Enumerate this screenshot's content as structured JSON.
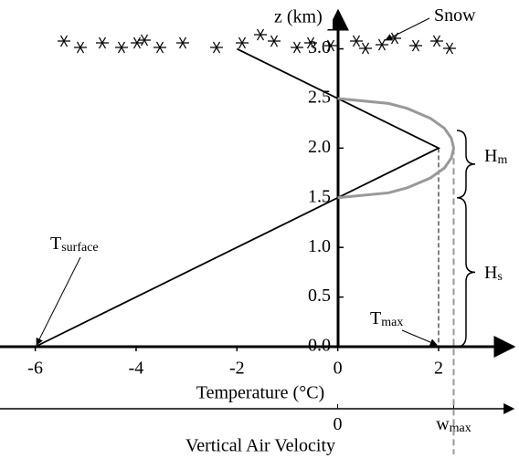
{
  "chart_data": {
    "type": "line",
    "ylabel": "z (km)",
    "xlabel": "Temperature (°C)",
    "x2label": "Vertical Air Velocity",
    "xlim": [
      -6.7,
      3.45
    ],
    "xticks": [
      -6,
      -4,
      -2,
      0,
      2
    ],
    "ylim": [
      0,
      3.4
    ],
    "yticks": [
      {
        "value": 0,
        "label": "0.0"
      },
      {
        "value": 0.5,
        "label": "0.5"
      },
      {
        "value": 1,
        "label": "1.0"
      },
      {
        "value": 1.5,
        "label": "1.5"
      },
      {
        "value": 2,
        "label": "2.0"
      },
      {
        "value": 2.5,
        "label": "2.5"
      },
      {
        "value": 3,
        "label": "3.0"
      }
    ],
    "x2lim": [
      -2.91,
      1.5
    ],
    "x2ticks": [
      {
        "value": 0,
        "label": "0"
      },
      {
        "value": 1,
        "label": "w"
      }
    ],
    "x2tick_sub": "max",
    "series": [
      {
        "color": "#000000",
        "axis": "x",
        "x": [
          -6,
          2,
          -2
        ],
        "values": [
          0,
          2,
          3
        ]
      },
      {
        "color": "#999999",
        "axis": "x2",
        "x": [
          0,
          0.44,
          0.6,
          0.8,
          0.92,
          0.98,
          1,
          0.98,
          0.92,
          0.8,
          0.6,
          0.44,
          0
        ],
        "values": [
          1.5,
          1.55,
          1.6,
          1.7,
          1.8,
          1.9,
          2.0,
          2.1,
          2.2,
          2.3,
          2.4,
          2.45,
          2.5
        ]
      }
    ],
    "annotations": [
      {
        "text": "Snow"
      },
      {
        "text": "T",
        "sub": "surface"
      },
      {
        "text": "T",
        "sub": "max"
      },
      {
        "text": "H",
        "sub": "m"
      },
      {
        "text": "H",
        "sub": "s"
      }
    ]
  }
}
